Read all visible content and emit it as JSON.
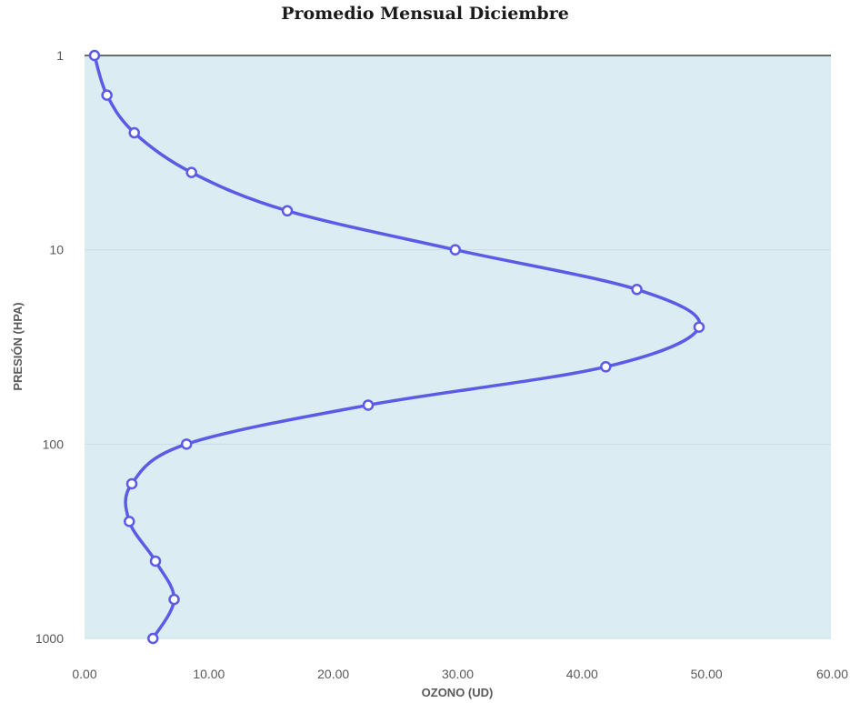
{
  "chart_data": {
    "type": "line",
    "title": "Promedio Mensual Diciembre",
    "xlabel": "OZONO (UD)",
    "ylabel": "PRESIÓN (HPA)",
    "xlim": [
      0,
      60
    ],
    "ylim": [
      1000,
      1
    ],
    "yscale": "log",
    "y_inverted": true,
    "grid": "horizontal major lines",
    "legend": "none",
    "x_ticks": [
      "0.00",
      "10.00",
      "20.00",
      "30.00",
      "40.00",
      "50.00",
      "60.00"
    ],
    "y_ticks": [
      "1",
      "10",
      "100",
      "1000"
    ],
    "plot_background": "#dbecf3",
    "line_color": "#5b5be6",
    "marker_face": "#ffffff",
    "smooth": true,
    "series": [
      {
        "x": [
          0.8,
          1.8,
          4.0,
          8.6,
          16.3,
          29.8,
          44.4,
          49.4,
          41.9,
          22.8,
          8.2,
          3.8,
          3.6,
          5.7,
          7.2,
          5.5
        ],
        "y": [
          1,
          1.6,
          2.5,
          4,
          6.3,
          10,
          16,
          25,
          40,
          63,
          100,
          160,
          250,
          400,
          630,
          1000
        ]
      }
    ]
  }
}
